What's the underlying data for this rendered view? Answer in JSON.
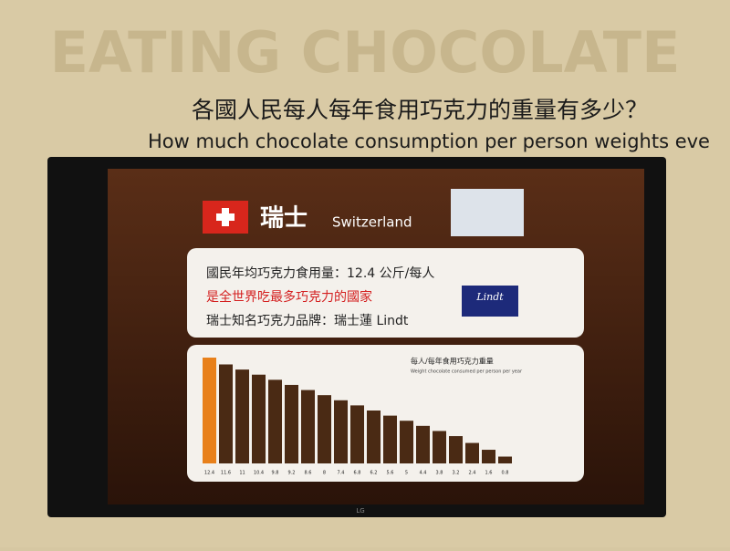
{
  "wall": {
    "title": "EATING CHOCOLATE",
    "question_zh": "各國人民每人每年食用巧克力的重量有多少？",
    "question_en": "How much chocolate consumption per person weights eve"
  },
  "screen": {
    "country_zh": "瑞士",
    "country_en": "Switzerland",
    "bullets": [
      "國民年均巧克力食用量：12.4 公斤/每人",
      "是全世界吃最多巧克力的國家",
      "瑞士知名巧克力品牌：瑞士蓮 Lindt"
    ],
    "logo": "Lindt",
    "brand": "LG"
  },
  "chart_data": {
    "type": "bar",
    "title": "每人/每年食用巧克力重量",
    "subtitle": "Weight chocolate consumed per person per year",
    "categories": [
      null,
      null,
      null,
      null,
      null,
      null,
      null,
      null,
      null,
      null,
      null,
      null,
      null,
      null,
      null,
      null,
      null,
      null,
      null
    ],
    "values": [
      12.4,
      11.6,
      11.0,
      10.4,
      9.8,
      9.2,
      8.6,
      8.0,
      7.4,
      6.8,
      6.2,
      5.6,
      5.0,
      4.4,
      3.8,
      3.2,
      2.4,
      1.6,
      0.8
    ],
    "color": "#4a2a14",
    "highlight_color": "#e8801a"
  }
}
